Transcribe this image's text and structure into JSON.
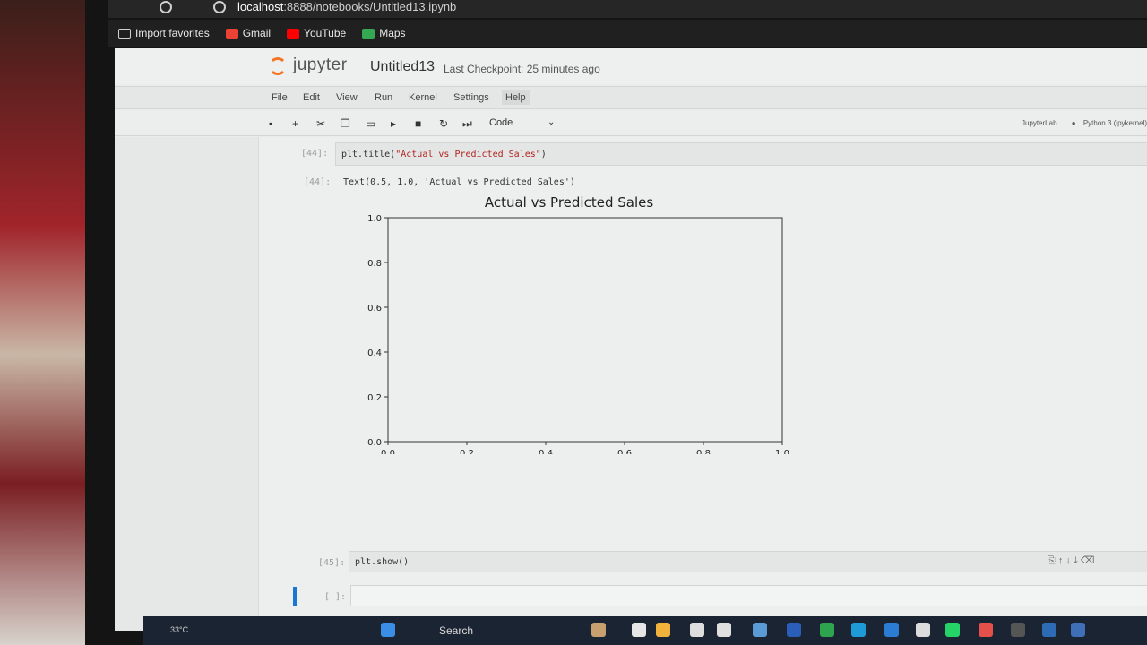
{
  "browser": {
    "url_host": "localhost",
    "url_rest": ":8888/notebooks/Untitled13.ipynb",
    "bookmarks": [
      {
        "label": "Import favorites",
        "color": "#cfcfcf"
      },
      {
        "label": "Gmail",
        "color": "#ea4335"
      },
      {
        "label": "YouTube",
        "color": "#ff0000"
      },
      {
        "label": "Maps",
        "color": "#34a853"
      }
    ]
  },
  "jupyter": {
    "logo_text": "jupyter",
    "notebook_title": "Untitled13",
    "checkpoint": "Last Checkpoint: 25 minutes ago",
    "menu": [
      "File",
      "Edit",
      "View",
      "Run",
      "Kernel",
      "Settings",
      "Help"
    ],
    "toolbar": {
      "cell_type": "Code",
      "jupyterlab": "JupyterLab",
      "kernel": "Python 3 (ipykernel)"
    }
  },
  "cells": [
    {
      "in_prompt": "[44]:",
      "code_fn": "plt.title(",
      "code_str": "\"Actual vs Predicted Sales\"",
      "code_end": ")"
    },
    {
      "out_prompt": "[44]:",
      "output": "Text(0.5, 1.0, 'Actual vs Predicted Sales')"
    },
    {
      "in_prompt": "[45]:",
      "code": "plt.show()"
    },
    {
      "in_prompt": "[ ]:",
      "code": ""
    }
  ],
  "chart_data": {
    "type": "line",
    "title": "Actual vs Predicted Sales",
    "xlim": [
      0.0,
      1.0
    ],
    "ylim": [
      0.0,
      1.0
    ],
    "xticks": [
      "0.0",
      "0.2",
      "0.4",
      "0.6",
      "0.8",
      "1.0"
    ],
    "yticks": [
      "0.0",
      "0.2",
      "0.4",
      "0.6",
      "0.8",
      "1.0"
    ],
    "series": [],
    "grid": false
  },
  "taskbar": {
    "search": "Search",
    "weather": "33°C"
  },
  "colors": {
    "jupyter_orange": "#f37626",
    "cell_bg": "#e3e6e4",
    "string": "#b22222"
  }
}
